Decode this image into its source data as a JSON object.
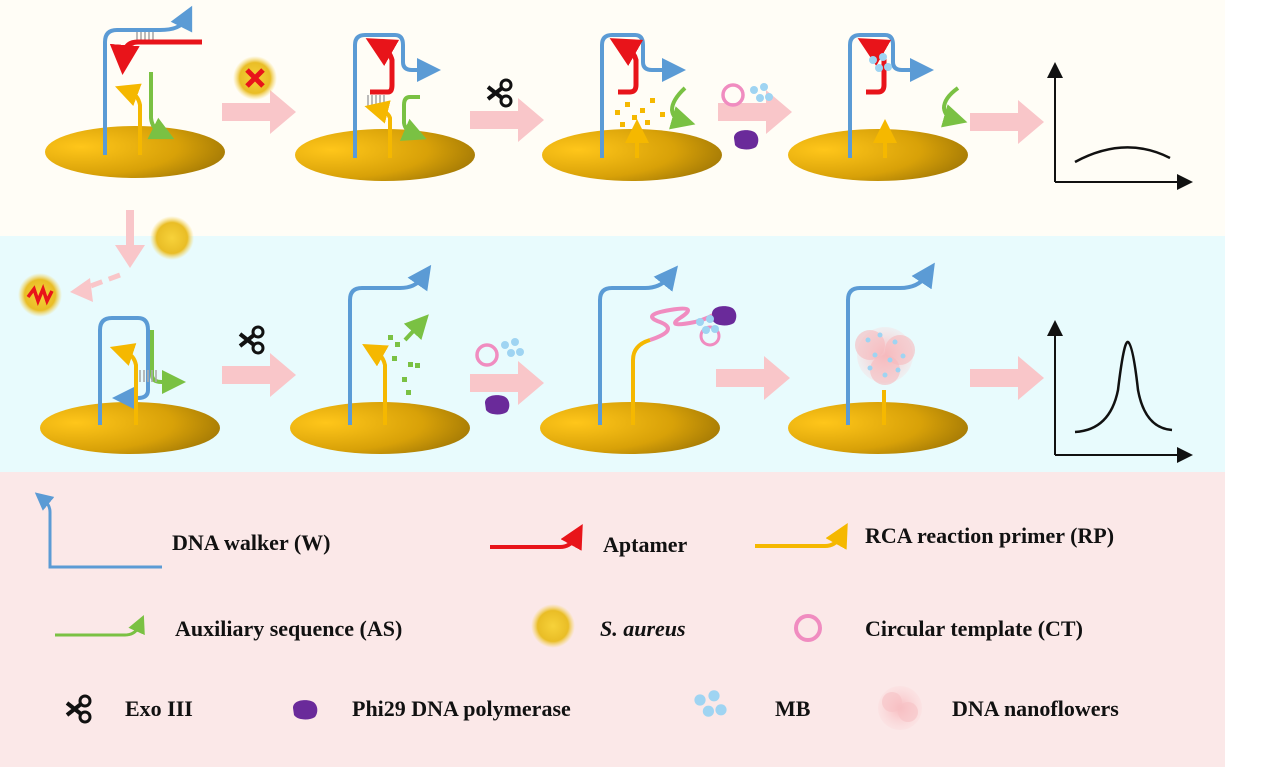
{
  "colors": {
    "walker": "#5b9bd5",
    "aptamer": "#e8141a",
    "primer": "#f5b800",
    "auxiliary": "#7ac143",
    "arrow": "#f9c6c9",
    "circular_template": "#f08cc0",
    "polymerase": "#6a2a9a",
    "mb": "#9fd4f2",
    "electrode_gold": "#d4a010",
    "top_panel_bg": "#fffdf6",
    "middle_panel_bg": "#e8fbfd",
    "legend_bg": "#fbe8e8"
  },
  "legend": {
    "walker": "DNA walker (W)",
    "aptamer": "Aptamer",
    "primer": "RCA reaction primer (RP)",
    "auxiliary": "Auxiliary sequence (AS)",
    "s_aureus": "S. aureus",
    "circular_template": "Circular template (CT)",
    "exo": "Exo III",
    "polymerase": "Phi29 DNA polymerase",
    "mb": "MB",
    "nanoflowers": "DNA nanoflowers"
  },
  "icons": [
    "scissors-icon",
    "blocked-x-icon",
    "bacterium-icon",
    "circle-template-icon",
    "polymerase-blob-icon",
    "mb-dots-icon",
    "nanoflower-icon"
  ],
  "signals": {
    "without_target": "low broad signal",
    "with_target": "high sharp peak"
  }
}
